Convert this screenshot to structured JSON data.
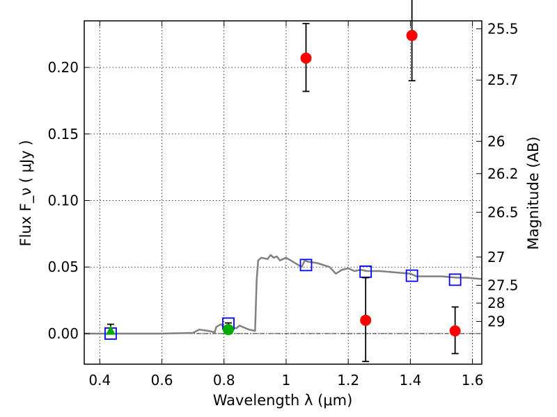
{
  "chart_data": {
    "type": "scatter",
    "title": "",
    "xlabel": "Wavelength  λ (μm)",
    "ylabel": "Flux  F_ν  ( μJy )",
    "y2label": "Magnitude (AB)",
    "xlim": [
      0.35,
      1.63
    ],
    "ylim": [
      -0.023,
      0.235
    ],
    "grid": true,
    "xticks": [
      0.4,
      0.6,
      0.8,
      1.0,
      1.2,
      1.4,
      1.6
    ],
    "xtick_labels": [
      "0.4",
      "0.6",
      "0.8",
      "1",
      "1.2",
      "1.4",
      "1.6"
    ],
    "yticks": [
      0.0,
      0.05,
      0.1,
      0.15,
      0.2
    ],
    "ytick_labels": [
      "0.00",
      "0.05",
      "0.10",
      "0.15",
      "0.20"
    ],
    "mag_ticks": [
      {
        "label": "25.5",
        "flux": 0.229
      },
      {
        "label": "25.7",
        "flux": 0.1905
      },
      {
        "label": "26",
        "flux": 0.1445
      },
      {
        "label": "26.2",
        "flux": 0.1202
      },
      {
        "label": "26.5",
        "flux": 0.0912
      },
      {
        "label": "27",
        "flux": 0.0575
      },
      {
        "label": "27.5",
        "flux": 0.0363
      },
      {
        "label": "28",
        "flux": 0.0229
      },
      {
        "label": "29",
        "flux": 0.0091
      }
    ],
    "model_sed": {
      "color": "#808080",
      "x": [
        0.35,
        0.6,
        0.7,
        0.72,
        0.75,
        0.77,
        0.775,
        0.79,
        0.8,
        0.84,
        0.85,
        0.88,
        0.9,
        0.905,
        0.91,
        0.92,
        0.94,
        0.95,
        0.96,
        0.97,
        0.98,
        1.0,
        1.05,
        1.06,
        1.07,
        1.1,
        1.14,
        1.16,
        1.18,
        1.2,
        1.22,
        1.24,
        1.26,
        1.3,
        1.35,
        1.4,
        1.42,
        1.45,
        1.5,
        1.55,
        1.58,
        1.63
      ],
      "y": [
        0.0,
        0.0,
        0.0005,
        0.003,
        0.002,
        0.001,
        0.005,
        0.007,
        0.005,
        0.004,
        0.006,
        0.003,
        0.002,
        0.04,
        0.055,
        0.057,
        0.056,
        0.059,
        0.057,
        0.058,
        0.055,
        0.057,
        0.05,
        0.055,
        0.054,
        0.053,
        0.05,
        0.045,
        0.048,
        0.049,
        0.047,
        0.048,
        0.047,
        0.047,
        0.046,
        0.045,
        0.043,
        0.043,
        0.043,
        0.042,
        0.042,
        0.041
      ]
    },
    "model_bands": {
      "color": "#0000ff",
      "marker": "open-square",
      "x": [
        0.435,
        0.814,
        1.064,
        1.256,
        1.405,
        1.544
      ],
      "y": [
        0.0,
        0.0075,
        0.0515,
        0.0465,
        0.0435,
        0.0405
      ]
    },
    "observed": [
      {
        "x": 0.435,
        "y": 0.002,
        "yerr_low": 0.002,
        "yerr_high": 0.005,
        "color": "#00aa00",
        "marker": "triangle"
      },
      {
        "x": 0.814,
        "y": 0.003,
        "yerr_low": 0.003,
        "yerr_high": 0.005,
        "color": "#00aa00",
        "marker": "circle"
      },
      {
        "x": 1.064,
        "y": 0.207,
        "yerr_low": 0.025,
        "yerr_high": 0.026,
        "color": "#ff0000",
        "marker": "circle"
      },
      {
        "x": 1.256,
        "y": 0.01,
        "yerr_low": 0.031,
        "yerr_high": 0.032,
        "color": "#ff0000",
        "marker": "circle"
      },
      {
        "x": 1.405,
        "y": 0.224,
        "yerr_low": 0.034,
        "yerr_high": 0.03,
        "color": "#ff0000",
        "marker": "circle"
      },
      {
        "x": 1.544,
        "y": 0.002,
        "yerr_low": 0.017,
        "yerr_high": 0.018,
        "color": "#ff0000",
        "marker": "circle"
      }
    ]
  }
}
